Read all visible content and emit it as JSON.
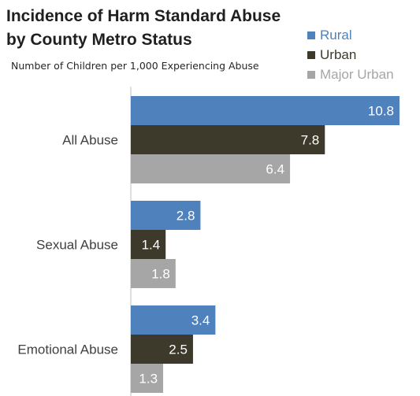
{
  "chart_data": {
    "type": "bar",
    "orientation": "horizontal",
    "title_lines": [
      "Incidence of Harm Standard Abuse",
      "by County Metro Status"
    ],
    "subtitle": "Number of Children per 1,000 Experiencing Abuse",
    "categories": [
      "All Abuse",
      "Sexual Abuse",
      "Emotional Abuse"
    ],
    "series": [
      {
        "name": "Rural",
        "values": [
          10.8,
          2.8,
          3.4
        ],
        "color": "#4f81bd",
        "label_color": "#4f81bd"
      },
      {
        "name": "Urban",
        "values": [
          7.8,
          1.4,
          2.5
        ],
        "color": "#3d3a2c",
        "label_color": "#3d3a2c"
      },
      {
        "name": "Major Urban",
        "values": [
          6.4,
          1.8,
          1.3
        ],
        "color": "#a6a6a6",
        "label_color": "#a6a6a6"
      }
    ],
    "xlim": [
      0,
      10.8
    ],
    "legend_position": "top-right",
    "grid": false,
    "data_labels": true
  }
}
